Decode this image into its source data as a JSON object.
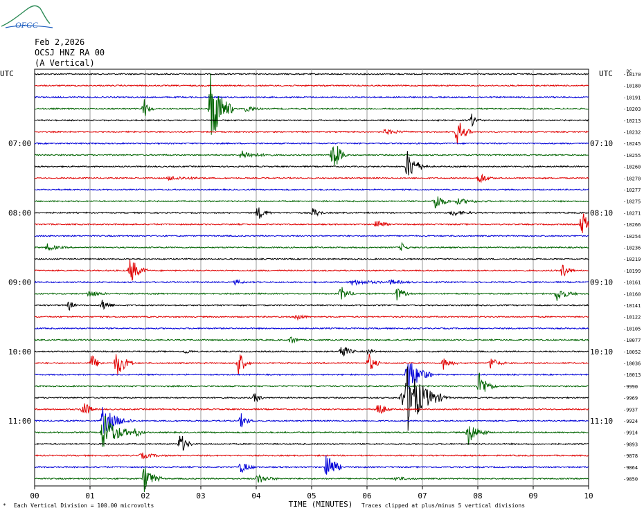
{
  "header": {
    "date": "Feb 2,2026",
    "station": "OCSJ HNZ RA 00",
    "component": "(A Vertical)",
    "logo_text": "OFGC"
  },
  "footer": {
    "division": "Each Vertical Division =  100.00 microvolts",
    "clip_note": "Traces clipped at plus/minus 5 vertical divisions"
  },
  "chart_data": {
    "type": "line",
    "title": "",
    "xlabel": "TIME (MINUTES)",
    "ylabel": "",
    "xlim": [
      0,
      10
    ],
    "x_ticks": [
      "00",
      "01",
      "02",
      "03",
      "04",
      "05",
      "06",
      "07",
      "08",
      "09",
      "10"
    ],
    "left_axis_label": "UTC",
    "right_axis_label": "UTC",
    "left_time_labels": [
      "07:00",
      "08:00",
      "09:00",
      "10:00",
      "11:00"
    ],
    "right_time_labels": [
      "07:10",
      "08:10",
      "09:10",
      "10:10",
      "11:10"
    ],
    "trace_colors": [
      "#000000",
      "#e00000",
      "#0000d8",
      "#006400"
    ],
    "trace_offsets": [
      -10170,
      -10180,
      -10191,
      -10203,
      -10213,
      -10232,
      -10245,
      -10255,
      -10260,
      -10270,
      -10277,
      -10275,
      -10271,
      -10266,
      -10254,
      -10236,
      -10219,
      -10199,
      -10161,
      -10160,
      -10141,
      -10122,
      -10105,
      -10077,
      -10052,
      -10036,
      -10013,
      -9990,
      -9969,
      -9937,
      -9924,
      -9914,
      -9893,
      -9878,
      -9864,
      -9850
    ],
    "grid": true
  }
}
